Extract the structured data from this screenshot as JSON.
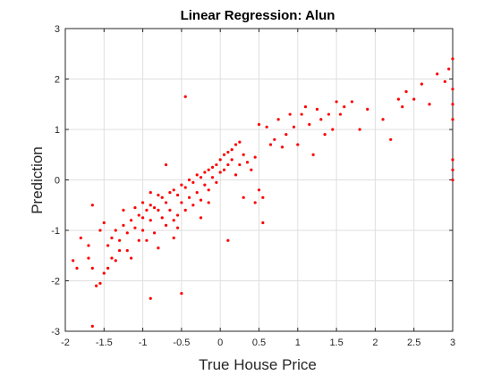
{
  "chart_data": {
    "type": "scatter",
    "title": "Linear Regression: Alun",
    "xlabel": "True House Price",
    "ylabel": "Prediction",
    "xlim": [
      -2,
      3
    ],
    "ylim": [
      -3,
      3
    ],
    "xticks": [
      -2,
      -1.5,
      -1,
      -0.5,
      0,
      0.5,
      1,
      1.5,
      2,
      2.5,
      3
    ],
    "xtick_labels": [
      "-2",
      "-1.5",
      "-1",
      "-0.5",
      "0",
      "0.5",
      "1",
      "1.5",
      "2",
      "2.5",
      "3"
    ],
    "yticks": [
      -3,
      -2,
      -1,
      0,
      1,
      2,
      3
    ],
    "ytick_labels": [
      "-3",
      "-2",
      "-1",
      "0",
      "1",
      "2",
      "3"
    ],
    "grid": true,
    "marker_color": "#ff0000",
    "series": [
      {
        "points": [
          [
            -1.65,
            -2.9
          ],
          [
            -1.6,
            -2.1
          ],
          [
            -1.55,
            -2.05
          ],
          [
            -1.5,
            -1.85
          ],
          [
            -1.45,
            -1.75
          ],
          [
            -1.4,
            -1.55
          ],
          [
            -1.35,
            -1.6
          ],
          [
            -1.3,
            -1.2
          ],
          [
            -1.3,
            -1.4
          ],
          [
            -1.25,
            -0.9
          ],
          [
            -1.2,
            -1.05
          ],
          [
            -1.15,
            -0.8
          ],
          [
            -1.1,
            -0.95
          ],
          [
            -1.05,
            -1.2
          ],
          [
            -1.0,
            -0.75
          ],
          [
            -0.95,
            -0.6
          ],
          [
            -0.9,
            -0.5
          ],
          [
            -0.85,
            -0.55
          ],
          [
            -0.8,
            -0.3
          ],
          [
            -0.75,
            -0.35
          ],
          [
            -0.7,
            -0.45
          ],
          [
            -0.65,
            -0.25
          ],
          [
            -0.6,
            -0.2
          ],
          [
            -0.55,
            -0.3
          ],
          [
            -0.5,
            -0.1
          ],
          [
            -0.45,
            -0.15
          ],
          [
            -0.4,
            0.0
          ],
          [
            -0.35,
            -0.05
          ],
          [
            -0.3,
            0.1
          ],
          [
            -0.25,
            0.05
          ],
          [
            -0.2,
            0.15
          ],
          [
            -0.15,
            0.2
          ],
          [
            -0.1,
            0.25
          ],
          [
            -0.05,
            0.3
          ],
          [
            0.0,
            0.4
          ],
          [
            0.05,
            0.5
          ],
          [
            0.1,
            0.55
          ],
          [
            0.15,
            0.6
          ],
          [
            0.2,
            0.7
          ],
          [
            0.25,
            0.75
          ],
          [
            -1.9,
            -1.6
          ],
          [
            -1.85,
            -1.75
          ],
          [
            -1.8,
            -1.15
          ],
          [
            -1.7,
            -1.3
          ],
          [
            -1.7,
            -1.55
          ],
          [
            -1.65,
            -1.75
          ],
          [
            -1.65,
            -0.5
          ],
          [
            -1.55,
            -1.0
          ],
          [
            -1.5,
            -0.85
          ],
          [
            -1.45,
            -1.3
          ],
          [
            -1.4,
            -1.15
          ],
          [
            -1.35,
            -1.0
          ],
          [
            -1.2,
            -1.4
          ],
          [
            -1.15,
            -1.55
          ],
          [
            -1.1,
            -0.55
          ],
          [
            -1.05,
            -0.7
          ],
          [
            -1.0,
            -1.0
          ],
          [
            -1.0,
            -0.45
          ],
          [
            -0.95,
            -1.2
          ],
          [
            -0.9,
            -0.8
          ],
          [
            -0.9,
            -2.35
          ],
          [
            -0.85,
            -1.05
          ],
          [
            -0.8,
            -0.6
          ],
          [
            -0.8,
            -1.35
          ],
          [
            -0.75,
            -0.75
          ],
          [
            -0.7,
            -0.9
          ],
          [
            -0.65,
            -0.6
          ],
          [
            -0.6,
            -1.15
          ],
          [
            -0.55,
            -0.7
          ],
          [
            -0.5,
            -2.25
          ],
          [
            -0.5,
            -0.45
          ],
          [
            -0.45,
            -0.6
          ],
          [
            -0.4,
            -0.35
          ],
          [
            -0.35,
            -0.5
          ],
          [
            -0.3,
            -0.25
          ],
          [
            -0.25,
            -0.4
          ],
          [
            -0.2,
            -0.1
          ],
          [
            -0.15,
            -0.2
          ],
          [
            -0.1,
            0.05
          ],
          [
            -0.05,
            -0.05
          ],
          [
            0.0,
            0.15
          ],
          [
            0.05,
            0.2
          ],
          [
            0.1,
            -1.2
          ],
          [
            0.1,
            0.3
          ],
          [
            0.15,
            0.4
          ],
          [
            0.2,
            0.1
          ],
          [
            0.25,
            0.3
          ],
          [
            0.3,
            0.5
          ],
          [
            0.35,
            0.35
          ],
          [
            0.4,
            0.2
          ],
          [
            0.45,
            0.45
          ],
          [
            0.5,
            -0.2
          ],
          [
            0.5,
            1.1
          ],
          [
            0.55,
            -0.35
          ],
          [
            0.55,
            -0.85
          ],
          [
            0.6,
            1.05
          ],
          [
            0.65,
            0.7
          ],
          [
            0.7,
            0.8
          ],
          [
            0.75,
            1.2
          ],
          [
            0.8,
            0.65
          ],
          [
            0.85,
            0.9
          ],
          [
            0.9,
            1.3
          ],
          [
            0.95,
            1.05
          ],
          [
            1.0,
            0.7
          ],
          [
            1.05,
            1.3
          ],
          [
            1.1,
            1.45
          ],
          [
            1.15,
            1.1
          ],
          [
            1.2,
            0.5
          ],
          [
            1.25,
            1.4
          ],
          [
            1.3,
            1.2
          ],
          [
            1.35,
            0.9
          ],
          [
            1.4,
            1.3
          ],
          [
            1.45,
            1.0
          ],
          [
            1.5,
            1.55
          ],
          [
            1.55,
            1.3
          ],
          [
            1.6,
            1.45
          ],
          [
            1.7,
            1.55
          ],
          [
            1.8,
            1.0
          ],
          [
            1.9,
            1.4
          ],
          [
            2.1,
            1.2
          ],
          [
            2.2,
            0.8
          ],
          [
            2.3,
            1.6
          ],
          [
            2.35,
            1.45
          ],
          [
            2.4,
            1.75
          ],
          [
            2.5,
            1.6
          ],
          [
            2.6,
            1.9
          ],
          [
            2.7,
            1.5
          ],
          [
            2.8,
            2.1
          ],
          [
            2.9,
            1.95
          ],
          [
            2.95,
            2.2
          ],
          [
            3.0,
            2.4
          ],
          [
            3.0,
            1.8
          ],
          [
            3.0,
            1.5
          ],
          [
            3.0,
            1.2
          ],
          [
            3.0,
            0.4
          ],
          [
            3.0,
            0.2
          ],
          [
            3.0,
            0.0
          ],
          [
            -0.45,
            1.65
          ],
          [
            -0.15,
            -0.45
          ],
          [
            0.3,
            -0.35
          ],
          [
            -0.6,
            -0.8
          ],
          [
            -0.25,
            -0.75
          ],
          [
            -0.55,
            -0.95
          ],
          [
            -0.9,
            -0.25
          ],
          [
            -1.25,
            -0.6
          ],
          [
            -0.7,
            0.3
          ],
          [
            0.45,
            -0.45
          ]
        ]
      }
    ]
  }
}
